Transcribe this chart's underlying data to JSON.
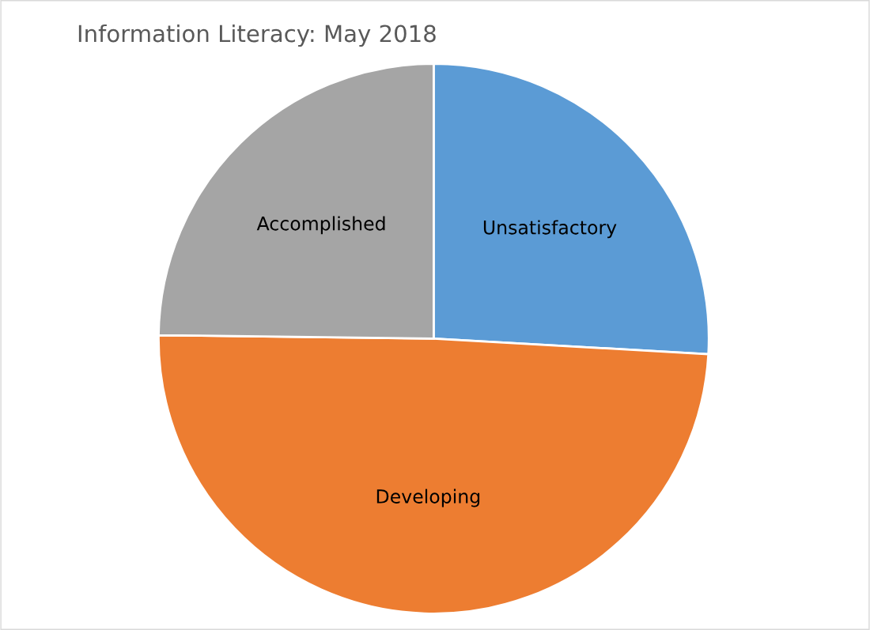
{
  "chart_data": {
    "type": "pie",
    "title": "Information Literacy: May 2018",
    "categories": [
      "Unsatisfactory",
      "Developing",
      "Accomplished"
    ],
    "values": [
      25.9,
      49.3,
      24.8
    ],
    "colors": [
      "#5b9bd5",
      "#ed7d31",
      "#a5a5a5"
    ]
  }
}
